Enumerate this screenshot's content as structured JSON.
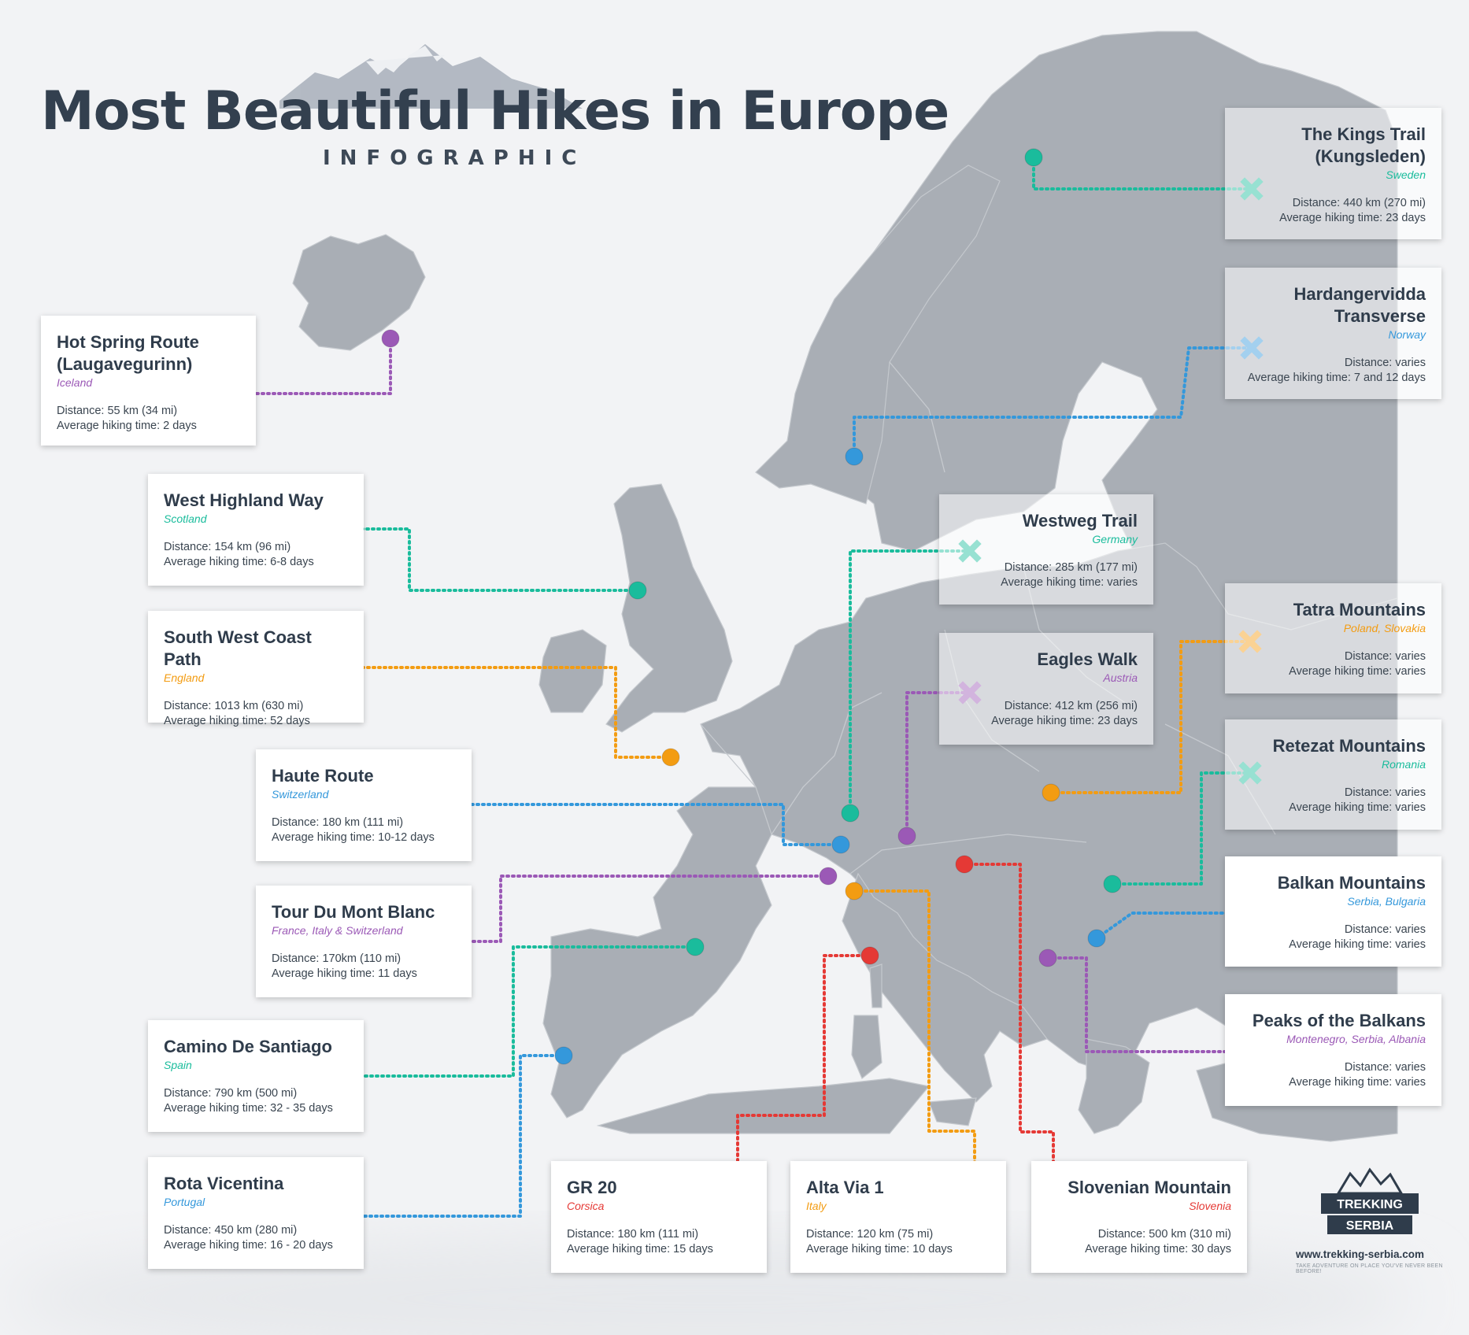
{
  "header": {
    "title": "Most Beautiful Hikes in Europe",
    "subtitle": "INFOGRAPHIC"
  },
  "colors": {
    "purple": "#9b59b6",
    "teal": "#1abc9c",
    "blue": "#3498db",
    "orange": "#f39c12",
    "red": "#e53935",
    "land": "#a9aeb5",
    "title": "#33404f"
  },
  "routes": [
    {
      "id": "kings-trail",
      "title": "The Kings Trail\n(Kungsleden)",
      "country": "Sweden",
      "distance": "Distance: 440 km (270 mi)",
      "time": "Average hiking time: 23 days",
      "color": "teal"
    },
    {
      "id": "hardangervidda",
      "title": "Hardangervidda\nTransverse",
      "country": "Norway",
      "distance": "Distance: varies",
      "time": "Average hiking time: 7 and 12 days",
      "color": "blue"
    },
    {
      "id": "hot-spring",
      "title": "Hot Spring Route\n(Laugavegurinn)",
      "country": "Iceland",
      "distance": "Distance: 55 km (34 mi)",
      "time": "Average hiking time: 2 days",
      "color": "purple"
    },
    {
      "id": "west-highland",
      "title": "West Highland Way",
      "country": "Scotland",
      "distance": "Distance: 154 km (96 mi)",
      "time": "Average hiking time: 6-8 days",
      "color": "teal"
    },
    {
      "id": "westweg",
      "title": "Westweg Trail",
      "country": "Germany",
      "distance": "Distance: 285 km (177 mi)",
      "time": "Average hiking time: varies",
      "color": "teal"
    },
    {
      "id": "south-west-coast",
      "title": "South West Coast Path",
      "country": "England",
      "distance": "Distance: 1013 km (630 mi)",
      "time": "Average hiking time: 52 days",
      "color": "orange"
    },
    {
      "id": "tatra",
      "title": "Tatra Mountains",
      "country": "Poland, Slovakia",
      "distance": "Distance: varies",
      "time": "Average hiking time: varies",
      "color": "orange"
    },
    {
      "id": "eagles-walk",
      "title": "Eagles Walk",
      "country": "Austria",
      "distance": "Distance: 412 km (256 mi)",
      "time": "Average hiking time: 23 days",
      "color": "purple"
    },
    {
      "id": "retezat",
      "title": "Retezat Mountains",
      "country": "Romania",
      "distance": "Distance: varies",
      "time": "Average hiking time: varies",
      "color": "teal"
    },
    {
      "id": "haute-route",
      "title": "Haute Route",
      "country": "Switzerland",
      "distance": "Distance: 180 km (111 mi)",
      "time": "Average hiking time: 10-12 days",
      "color": "blue"
    },
    {
      "id": "mont-blanc",
      "title": "Tour Du Mont Blanc",
      "country": "France, Italy & Switzerland",
      "distance": "Distance: 170km (110 mi)",
      "time": "Average hiking time: 11 days",
      "color": "purple"
    },
    {
      "id": "balkan-mountains",
      "title": "Balkan Mountains",
      "country": "Serbia, Bulgaria",
      "distance": "Distance: varies",
      "time": "Average hiking time: varies",
      "color": "blue"
    },
    {
      "id": "camino",
      "title": "Camino De Santiago",
      "country": "Spain",
      "distance": "Distance: 790 km (500 mi)",
      "time": "Average hiking time: 32 - 35 days",
      "color": "teal"
    },
    {
      "id": "peaks-balkans",
      "title": "Peaks of the Balkans",
      "country": "Montenegro, Serbia, Albania",
      "distance": "Distance: varies",
      "time": "Average hiking time: varies",
      "color": "purple"
    },
    {
      "id": "rota-vicentina",
      "title": "Rota Vicentina",
      "country": "Portugal",
      "distance": "Distance: 450 km (280 mi)",
      "time": "Average hiking time: 16 - 20 days",
      "color": "blue"
    },
    {
      "id": "gr20",
      "title": "GR 20",
      "country": "Corsica",
      "distance": "Distance: 180 km (111 mi)",
      "time": "Average hiking time: 15 days",
      "color": "red"
    },
    {
      "id": "alta-via",
      "title": "Alta Via 1",
      "country": "Italy",
      "distance": "Distance: 120 km (75 mi)",
      "time": "Average hiking time: 10 days",
      "color": "orange"
    },
    {
      "id": "slovenian",
      "title": "Slovenian Mountain",
      "country": "Slovenia",
      "distance": "Distance: 500 km (310 mi)",
      "time": "Average hiking time: 30 days",
      "color": "red"
    }
  ],
  "logo": {
    "line1": "TREKKING",
    "line2": "SERBIA",
    "url": "www.trekking-serbia.com",
    "tagline": "TAKE ADVENTURE ON PLACE YOU'VE NEVER BEEN BEFORE!"
  }
}
